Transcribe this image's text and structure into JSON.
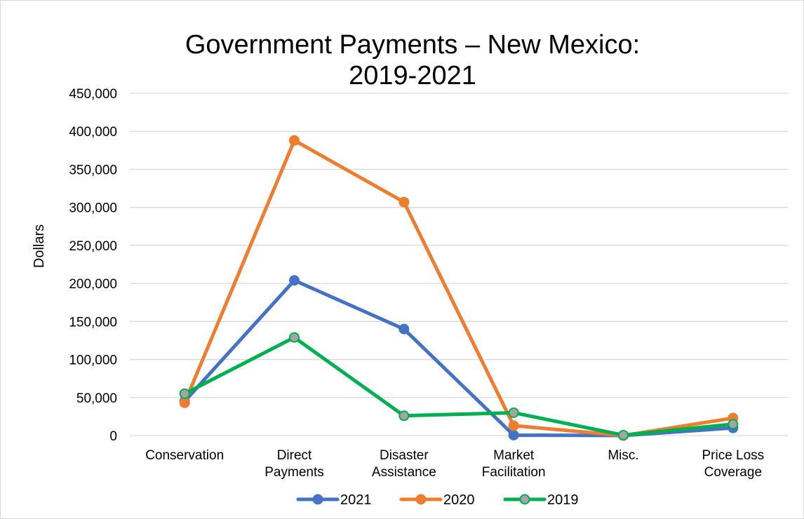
{
  "chart_data": {
    "type": "line",
    "title_lines": [
      "Government Payments – New Mexico:",
      "2019-2021"
    ],
    "xlabel": "",
    "ylabel": "Dollars",
    "ylim": [
      0,
      450000
    ],
    "yticks": [
      "0",
      "50,000",
      "100,000",
      "150,000",
      "200,000",
      "250,000",
      "300,000",
      "350,000",
      "400,000",
      "450,000"
    ],
    "ytick_values": [
      0,
      50000,
      100000,
      150000,
      200000,
      250000,
      300000,
      350000,
      400000,
      450000
    ],
    "categories": [
      [
        "Conservation"
      ],
      [
        "Direct",
        "Payments"
      ],
      [
        "Disaster",
        "Assistance"
      ],
      [
        "Market",
        "Facilitation"
      ],
      [
        "Misc."
      ],
      [
        "Price Loss",
        "Coverage"
      ]
    ],
    "grid": true,
    "legend_position": "bottom",
    "series": [
      {
        "name": "2021",
        "color": "#4472c4",
        "marker_fill": "#4472c4",
        "values": [
          45000,
          204000,
          140000,
          500,
          0,
          10000
        ]
      },
      {
        "name": "2020",
        "color": "#ed7d31",
        "marker_fill": "#ed7d31",
        "values": [
          43000,
          388000,
          307000,
          13000,
          0,
          23000
        ]
      },
      {
        "name": "2019",
        "color": "#00b050",
        "marker_fill": "#a5a5a5",
        "values": [
          55000,
          129000,
          26000,
          30000,
          500,
          15000
        ]
      }
    ]
  }
}
